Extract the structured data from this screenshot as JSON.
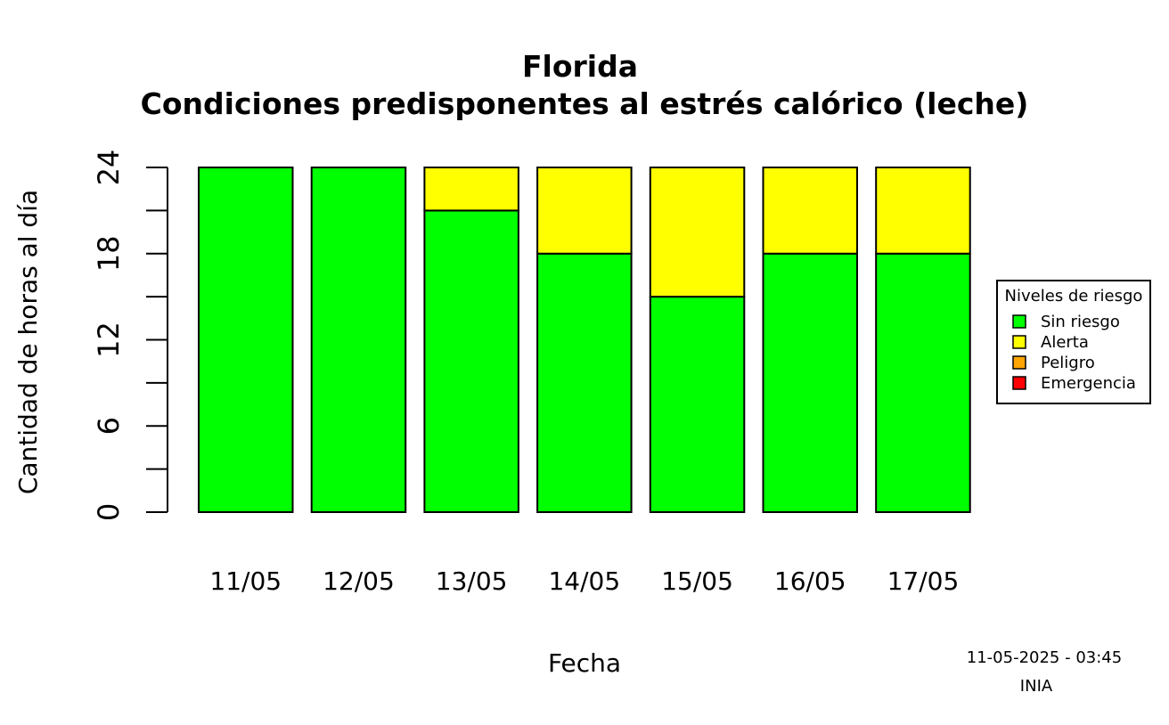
{
  "chart_data": {
    "type": "bar",
    "stacked": true,
    "title": "Florida",
    "subtitle": "Condiciones predisponentes al estrés calórico (leche)",
    "xlabel": "Fecha",
    "ylabel": "Cantidad de horas al día",
    "ylim": [
      0,
      24
    ],
    "y_ticks": [
      0,
      6,
      12,
      18,
      24
    ],
    "y_ticks_labeled": [
      "0",
      "6",
      "12",
      "18",
      "24"
    ],
    "y_minor_ticks": [
      3,
      9,
      15,
      21
    ],
    "grid": false,
    "categories": [
      "11/05",
      "12/05",
      "13/05",
      "14/05",
      "15/05",
      "16/05",
      "17/05"
    ],
    "series": [
      {
        "name": "Sin riesgo",
        "color": "#00ff00",
        "values": [
          24,
          24,
          21,
          18,
          15,
          18,
          18
        ]
      },
      {
        "name": "Alerta",
        "color": "#ffff00",
        "values": [
          0,
          0,
          3,
          6,
          9,
          6,
          6
        ]
      },
      {
        "name": "Peligro",
        "color": "#ffa500",
        "values": [
          0,
          0,
          0,
          0,
          0,
          0,
          0
        ]
      },
      {
        "name": "Emergencia",
        "color": "#ff0000",
        "values": [
          0,
          0,
          0,
          0,
          0,
          0,
          0
        ]
      }
    ],
    "legend": {
      "title": "Niveles de riesgo",
      "placement": "right",
      "entries": [
        "Sin riesgo",
        "Alerta",
        "Peligro",
        "Emergencia"
      ]
    }
  },
  "footer": {
    "timestamp": "11-05-2025 - 03:45",
    "source": "INIA"
  }
}
